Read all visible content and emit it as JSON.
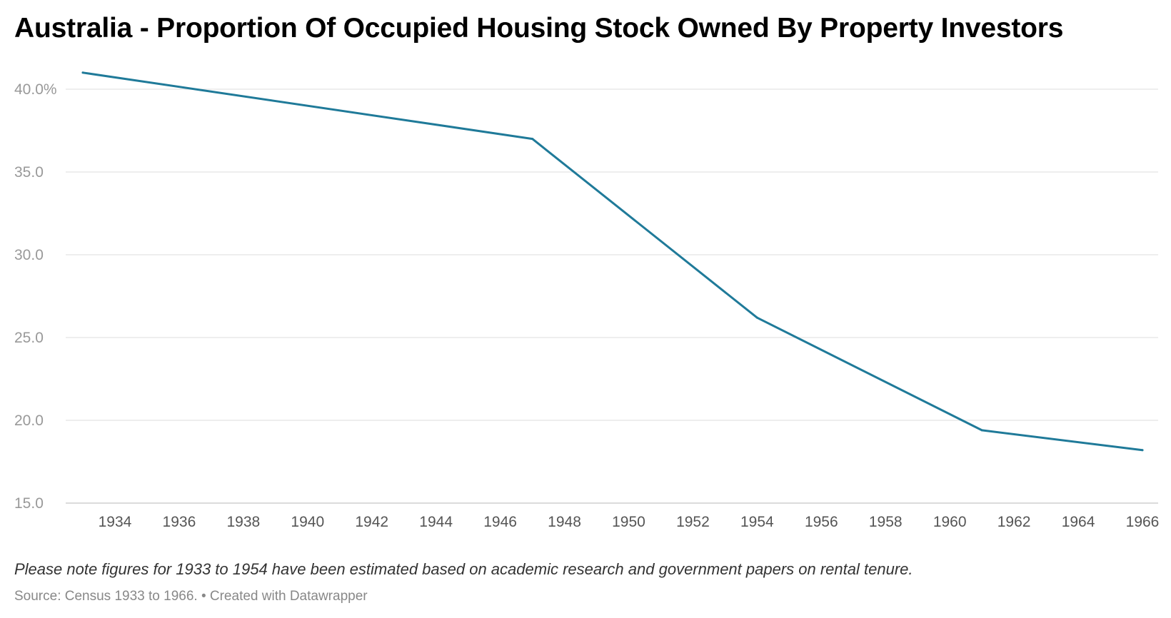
{
  "chart_data": {
    "type": "line",
    "title": "Australia - Proportion Of Occupied Housing Stock Owned By Property Investors",
    "xlabel": "",
    "ylabel": "",
    "x_ticks": [
      "1934",
      "1936",
      "1938",
      "1940",
      "1942",
      "1944",
      "1946",
      "1948",
      "1950",
      "1952",
      "1954",
      "1956",
      "1958",
      "1960",
      "1962",
      "1964",
      "1966"
    ],
    "y_ticks": [
      "40.0%",
      "35.0",
      "30.0",
      "25.0",
      "20.0",
      "15.0"
    ],
    "y_tick_values": [
      40,
      35,
      30,
      25,
      20,
      15
    ],
    "xlim": [
      1933,
      1966
    ],
    "ylim": [
      15,
      41
    ],
    "grid": true,
    "legend": "none",
    "series": [
      {
        "color": "#1f7a99",
        "x": [
          1933,
          1947,
          1954,
          1961,
          1966
        ],
        "y": [
          41.0,
          37.0,
          26.2,
          19.4,
          18.2
        ]
      }
    ]
  },
  "note": "Please note figures for 1933 to 1954 have been estimated based on academic research and government papers on rental tenure.",
  "footer": "Source: Census 1933 to 1966. • Created with Datawrapper"
}
